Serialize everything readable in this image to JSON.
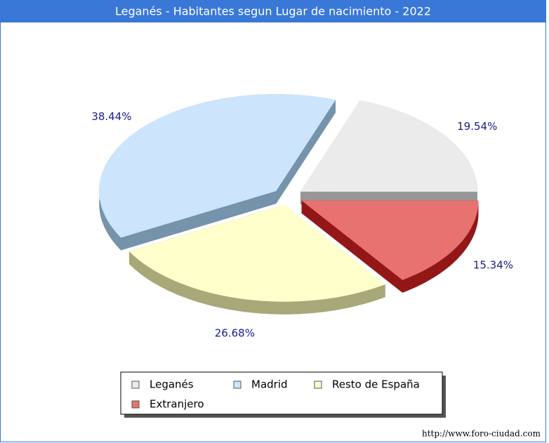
{
  "chart_data": {
    "type": "pie",
    "title": "Leganés - Habitantes segun Lugar de nacimiento - 2022",
    "categories": [
      "Leganés",
      "Madrid",
      "Resto de España",
      "Extranjero"
    ],
    "values": [
      19.54,
      38.44,
      26.68,
      15.34
    ],
    "value_labels": [
      "19.54%",
      "38.44%",
      "26.68%",
      "15.34%"
    ],
    "colors": [
      "#ebebeb",
      "#cce5fc",
      "#ffffcc",
      "#e8726f"
    ],
    "side_colors": [
      "#979797",
      "#7593ab",
      "#a8a878",
      "#931717"
    ],
    "source": "http://www.foro-ciudad.com"
  }
}
